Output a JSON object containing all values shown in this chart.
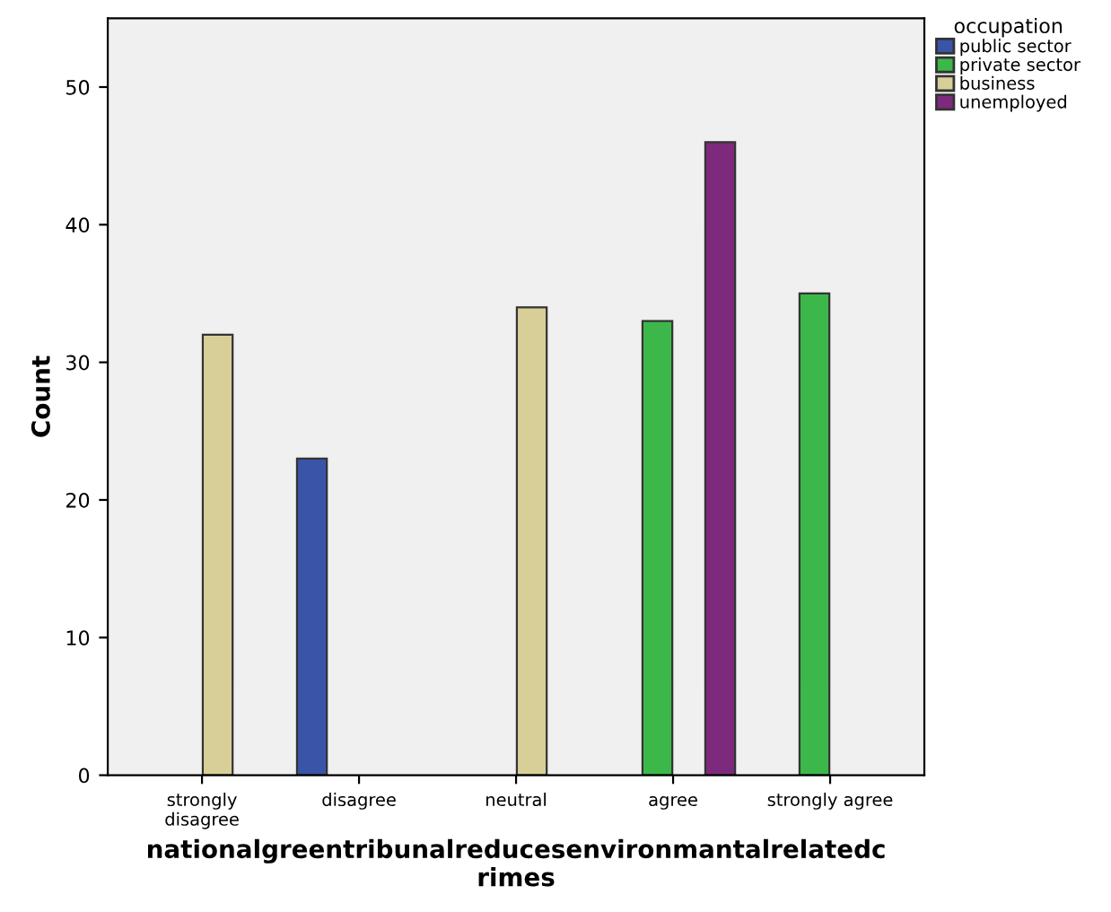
{
  "chart_data": {
    "type": "bar",
    "xlabel": "nationalgreentribunalreducesenvironmantalrelatedc\nrimes",
    "ylabel": "Count",
    "legend_title": "occupation",
    "legend": "top right",
    "categories": [
      "strongly\ndisagree",
      "disagree",
      "neutral",
      "agree",
      "strongly agree"
    ],
    "series": [
      {
        "name": "public sector",
        "color": "#3a55a8",
        "values": [
          null,
          23,
          null,
          null,
          null
        ]
      },
      {
        "name": "private sector",
        "color": "#3cb84a",
        "values": [
          null,
          null,
          null,
          33,
          35
        ]
      },
      {
        "name": "business",
        "color": "#d8cf98",
        "values": [
          32,
          null,
          34,
          null,
          null
        ]
      },
      {
        "name": "unemployed",
        "color": "#7e2a7c",
        "values": [
          null,
          null,
          null,
          46,
          null
        ]
      }
    ],
    "ylim": [
      0,
      55
    ],
    "yticks": [
      0,
      10,
      20,
      30,
      40,
      50
    ],
    "grid": false
  }
}
